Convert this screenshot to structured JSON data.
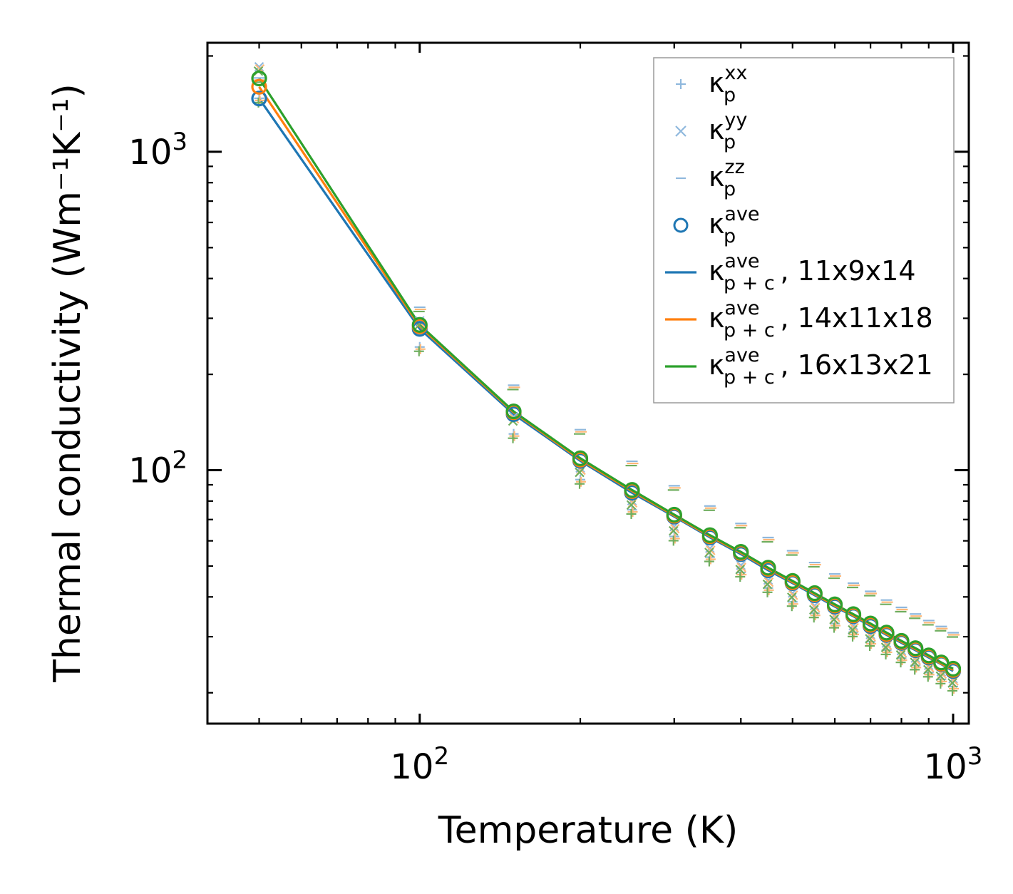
{
  "chart_data": {
    "type": "line",
    "title": "",
    "xlabel": "Temperature (K)",
    "ylabel": "Thermal conductivity (Wm⁻¹K⁻¹)",
    "xscale": "log",
    "yscale": "log",
    "xlim": [
      40,
      1070
    ],
    "ylim": [
      16,
      2200
    ],
    "x_ticks": [
      {
        "base": "10",
        "exp": "2",
        "value": 100
      },
      {
        "base": "10",
        "exp": "3",
        "value": 1000
      }
    ],
    "y_ticks": [
      {
        "base": "10",
        "exp": "2",
        "value": 100
      },
      {
        "base": "10",
        "exp": "3",
        "value": 1000
      }
    ],
    "legend_position": "top-right",
    "colors": {
      "blue": "#1f77b4",
      "orange": "#ff7f0e",
      "green": "#2ca02c",
      "light_blue": "#8fb8dd"
    },
    "x": [
      50,
      100,
      150,
      200,
      250,
      300,
      350,
      400,
      450,
      500,
      550,
      600,
      650,
      700,
      750,
      800,
      850,
      900,
      950,
      1000
    ],
    "component_series": [
      {
        "name": "xx",
        "marker": "plus",
        "label_base": "κ",
        "label_sub": "p",
        "label_sup": "xx",
        "values": [
          1450,
          240,
          128,
          92,
          74,
          61,
          52.5,
          47,
          42,
          38,
          35,
          32.5,
          30.5,
          28.5,
          26.8,
          25.3,
          24,
          22.8,
          21.7,
          20.6
        ]
      },
      {
        "name": "yy",
        "marker": "x",
        "label_base": "κ",
        "label_sub": "p",
        "label_sup": "yy",
        "values": [
          1820,
          290,
          145,
          100,
          79,
          65.5,
          56,
          49.5,
          44.5,
          40.5,
          37,
          34.5,
          32,
          30,
          28.2,
          26.7,
          25.3,
          24,
          22.9,
          21.8
        ]
      },
      {
        "name": "zz",
        "marker": "dash",
        "label_base": "κ",
        "label_sub": "p",
        "label_sup": "zz",
        "values": [
          1680,
          320,
          182,
          132,
          105,
          88,
          76,
          67,
          60.5,
          55,
          50.5,
          46.5,
          43.5,
          41,
          38.5,
          36.5,
          34.8,
          33.2,
          31.8,
          30.4
        ]
      }
    ],
    "ave_series": [
      {
        "name": "11x9x14",
        "color": "#1f77b4",
        "values": [
          1470,
          278,
          150,
          107,
          85,
          71.5,
          61.5,
          54.5,
          48.5,
          44.2,
          40.5,
          37.3,
          34.8,
          32.4,
          30.4,
          28.7,
          27.2,
          25.8,
          24.6,
          23.4
        ]
      },
      {
        "name": "14x11x18",
        "color": "#ff7f0e",
        "values": [
          1600,
          283,
          152,
          108,
          86,
          72,
          62,
          55,
          49,
          44.5,
          40.8,
          37.6,
          35,
          32.7,
          30.6,
          28.9,
          27.4,
          26,
          24.7,
          23.6
        ]
      },
      {
        "name": "16x13x21",
        "color": "#2ca02c",
        "values": [
          1700,
          286,
          153,
          109,
          86.7,
          72.5,
          62.5,
          55.4,
          49.4,
          44.9,
          41.1,
          37.9,
          35.3,
          33,
          30.9,
          29.1,
          27.6,
          26.2,
          24.9,
          23.8
        ]
      }
    ],
    "legend": [
      {
        "kind": "plus",
        "color": "#8fb8dd",
        "base": "κ",
        "sup": "xx",
        "sub": "p",
        "suffix": ""
      },
      {
        "kind": "x",
        "color": "#8fb8dd",
        "base": "κ",
        "sup": "yy",
        "sub": "p",
        "suffix": ""
      },
      {
        "kind": "dash",
        "color": "#8fb8dd",
        "base": "κ",
        "sup": "zz",
        "sub": "p",
        "suffix": ""
      },
      {
        "kind": "circle",
        "color": "#1f77b4",
        "base": "κ",
        "sup": "ave",
        "sub": "p",
        "suffix": ""
      },
      {
        "kind": "line",
        "color": "#1f77b4",
        "base": "κ",
        "sup": "ave",
        "sub": "p + c",
        "suffix": ", 11x9x14"
      },
      {
        "kind": "line",
        "color": "#ff7f0e",
        "base": "κ",
        "sup": "ave",
        "sub": "p + c",
        "suffix": ", 14x11x18"
      },
      {
        "kind": "line",
        "color": "#2ca02c",
        "base": "κ",
        "sup": "ave",
        "sub": "p + c",
        "suffix": ", 16x13x21"
      }
    ]
  }
}
